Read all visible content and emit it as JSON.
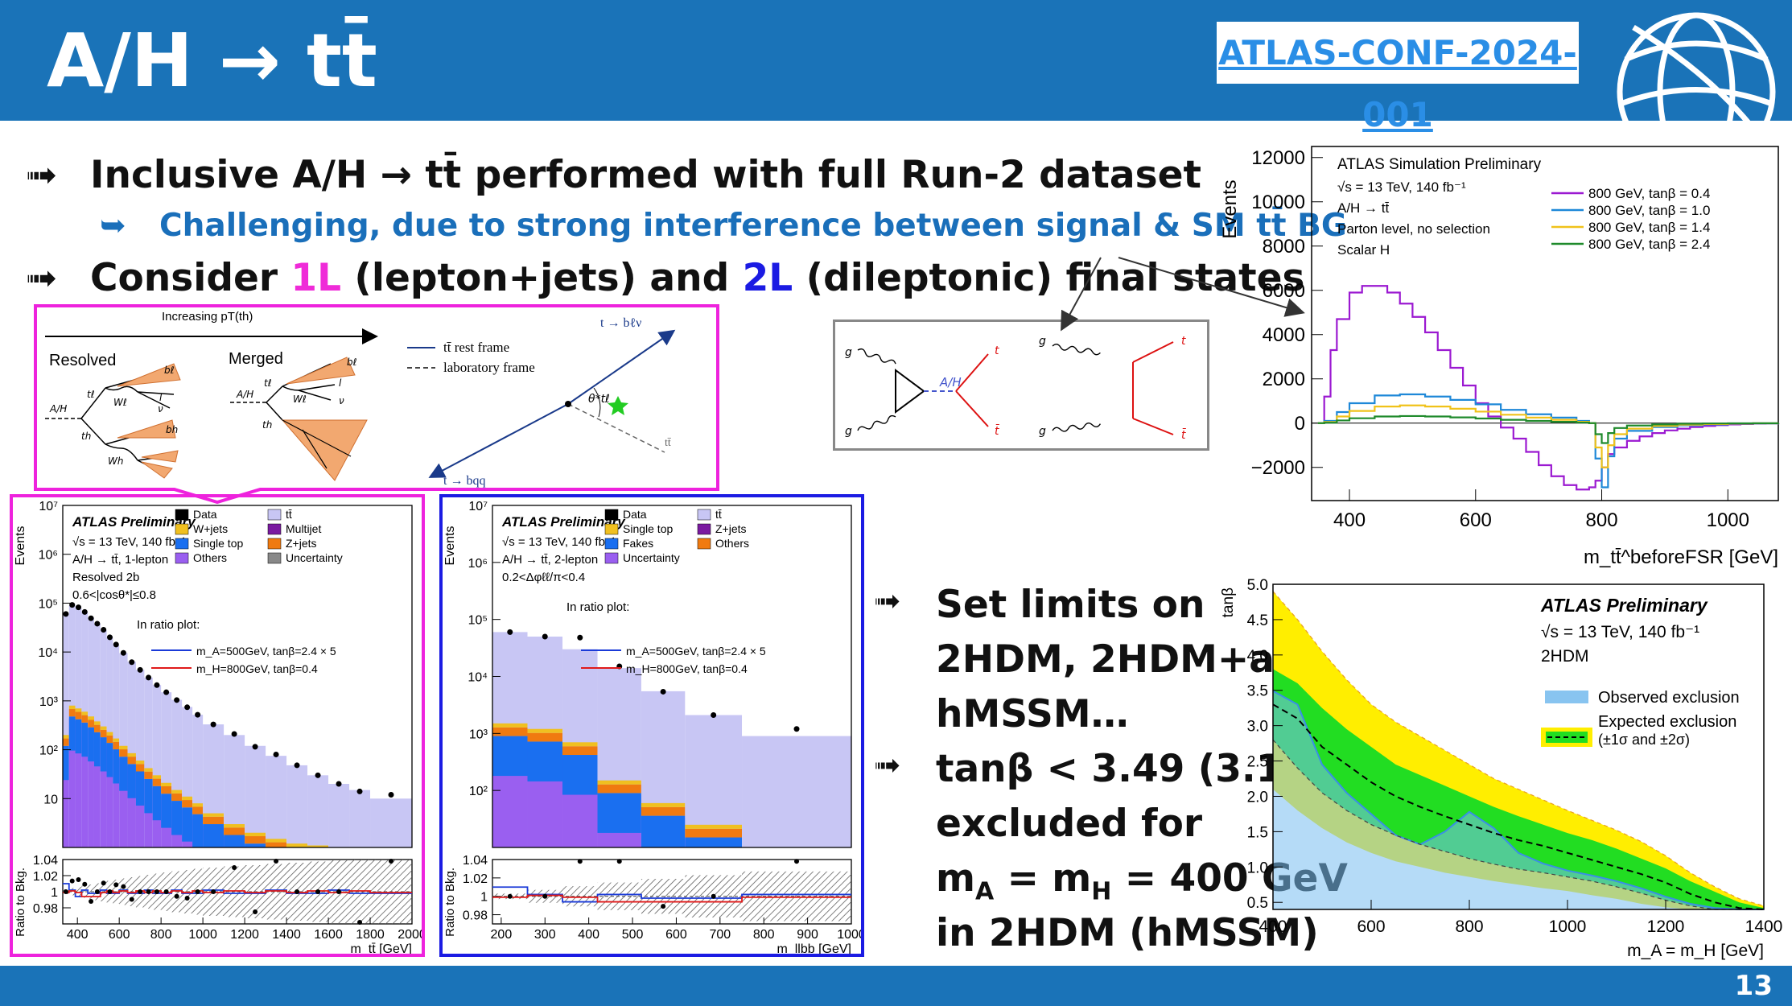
{
  "slide": {
    "title": "A/H → tt̄",
    "reference": "ATLAS-CONF-2024-001",
    "page_number": "13",
    "logo_icon": "globe-icon"
  },
  "bullets": {
    "arrow": "➟",
    "sub_arrow": "➥",
    "b1": "Inclusive A/H → tt̄ performed with full Run-2 dataset",
    "b1_sub": "Challenging, due to strong interference between signal & SM tt̄ BG",
    "b2_pre": "Consider ",
    "b2_1L": "1L",
    "b2_mid": " (lepton+jets) and ",
    "b2_2L": "2L",
    "b2_post": " (dileptonic) final states"
  },
  "limits_text": {
    "l1": "Set limits on",
    "l2": "2HDM, 2HDM+a,",
    "l3": "hMSSM…",
    "l4": "tanβ < 3.49 (3.16)",
    "l5": "excluded for",
    "l6": "m",
    "l6_sub1": "A",
    "l6_mid": " = m",
    "l6_sub2": "H",
    "l6_end": " = 400 GeV",
    "l7": "in 2HDM (hMSSM)"
  },
  "topology": {
    "increasing": "Increasing pT(th)",
    "resolved": "Resolved",
    "merged": "Merged",
    "legend_rest": "tt̄ rest frame",
    "legend_lab": "laboratory frame",
    "t_blnu": "t → bℓν",
    "t_bqq": "t → bqq",
    "ttbar": "tt̄",
    "theta": "θ*tℓ",
    "AH": "A/H",
    "tl": "tℓ",
    "th": "th",
    "Wl": "Wℓ",
    "Wh": "Wh",
    "bl": "bℓ",
    "bh": "bh",
    "l": "l",
    "nu": "ν"
  },
  "feynman": {
    "g": "g",
    "AH": "A/H",
    "t": "t",
    "tbar": "t̄"
  },
  "chart_data": [
    {
      "id": "parton-level",
      "type": "line",
      "title": "ATLAS Simulation Preliminary",
      "lines": [
        "√s = 13 TeV, 140 fb⁻¹",
        "A/H → tt̄",
        "Parton level, no selection",
        "Scalar H"
      ],
      "ylabel": "Events",
      "xlabel": "m_tt̄^beforeFSR [GeV]",
      "xlim": [
        340,
        1080
      ],
      "ylim": [
        -3500,
        12500
      ],
      "xticks": [
        400,
        600,
        800,
        1000
      ],
      "yticks": [
        -2000,
        0,
        2000,
        4000,
        6000,
        8000,
        10000,
        12000
      ],
      "ytick_labels": [
        "−2000",
        "0",
        "2000",
        "4000",
        "6000",
        "8000",
        "10000",
        "12000"
      ],
      "series": [
        {
          "name": "800 GeV, tanβ = 0.4",
          "color": "#9b19d1",
          "x": [
            350,
            360,
            370,
            380,
            400,
            420,
            440,
            460,
            480,
            500,
            520,
            540,
            560,
            580,
            600,
            620,
            640,
            660,
            680,
            700,
            720,
            740,
            760,
            780,
            790,
            800,
            810,
            820,
            840,
            860,
            880,
            900,
            920,
            940,
            960,
            980,
            1000,
            1020,
            1040,
            1060,
            1080
          ],
          "y": [
            0,
            1200,
            3300,
            4700,
            5900,
            6200,
            6200,
            5900,
            5400,
            4800,
            4100,
            3300,
            2500,
            1700,
            900,
            300,
            -200,
            -700,
            -1300,
            -1900,
            -2400,
            -2800,
            -3000,
            -2900,
            -2600,
            -2000,
            -1400,
            -1100,
            -800,
            -600,
            -450,
            -330,
            -250,
            -180,
            -130,
            -90,
            -60,
            -40,
            -25,
            -15,
            0
          ]
        },
        {
          "name": "800 GeV, tanβ = 1.0",
          "color": "#1e88d8",
          "x": [
            350,
            360,
            380,
            400,
            440,
            480,
            520,
            560,
            600,
            640,
            680,
            720,
            760,
            780,
            790,
            800,
            810,
            820,
            840,
            880,
            920,
            960,
            1000,
            1040,
            1080
          ],
          "y": [
            0,
            100,
            500,
            900,
            1250,
            1300,
            1200,
            1050,
            850,
            600,
            400,
            250,
            100,
            0,
            -1600,
            -2900,
            -1500,
            -700,
            -350,
            -180,
            -100,
            -60,
            -30,
            -15,
            0
          ]
        },
        {
          "name": "800 GeV, tanβ = 1.4",
          "color": "#f0c21a",
          "x": [
            350,
            360,
            380,
            400,
            440,
            480,
            520,
            560,
            600,
            640,
            680,
            720,
            760,
            780,
            790,
            800,
            810,
            820,
            840,
            880,
            920,
            960,
            1000,
            1040,
            1080
          ],
          "y": [
            0,
            50,
            300,
            550,
            750,
            800,
            750,
            650,
            520,
            380,
            250,
            150,
            60,
            0,
            -1100,
            -2000,
            -1000,
            -500,
            -250,
            -130,
            -70,
            -40,
            -20,
            -10,
            0
          ]
        },
        {
          "name": "800 GeV, tanβ = 2.4",
          "color": "#1f8a2b",
          "x": [
            350,
            360,
            380,
            400,
            440,
            480,
            520,
            560,
            600,
            640,
            680,
            720,
            760,
            780,
            790,
            800,
            810,
            820,
            840,
            880,
            920,
            960,
            1000,
            1040,
            1080
          ],
          "y": [
            0,
            20,
            120,
            220,
            300,
            320,
            300,
            260,
            210,
            150,
            100,
            60,
            25,
            0,
            -500,
            -900,
            -450,
            -220,
            -110,
            -60,
            -30,
            -15,
            -8,
            -4,
            0
          ]
        }
      ]
    },
    {
      "id": "1L-distribution",
      "type": "bar",
      "title": "ATLAS Preliminary",
      "lines": [
        "√s = 13 TeV, 140 fb⁻¹",
        "A/H → tt̄, 1-lepton",
        "Resolved 2b",
        "0.6<|cosθ*|≤0.8",
        "In ratio plot:"
      ],
      "legend": [
        "Data",
        "tt̄",
        "W+jets",
        "Multijet",
        "Single top",
        "Z+jets",
        "Others",
        "Uncertainty"
      ],
      "signals": [
        "m_A=500GeV, tanβ=2.4 × 5",
        "m_H=800GeV, tanβ=0.4"
      ],
      "ylabel": "Events",
      "ratio_ylabel": "Ratio to Bkg.",
      "xlabel": "m_tt̄ [GeV]",
      "xlim": [
        330,
        2000
      ],
      "xticks": [
        400,
        600,
        800,
        1000,
        1200,
        1400,
        1600,
        1800,
        2000
      ],
      "ylog": [
        1,
        10000000
      ],
      "yticks": [
        "10",
        "10²",
        "10³",
        "10⁴",
        "10⁵",
        "10⁶",
        "10⁷"
      ],
      "ratio_ylim": [
        0.96,
        1.04
      ],
      "ratio_yticks": [
        "0.98",
        "1",
        "1.02",
        "1.04"
      ],
      "bin_edges": [
        330,
        360,
        390,
        420,
        450,
        480,
        510,
        540,
        570,
        600,
        640,
        680,
        720,
        760,
        800,
        850,
        900,
        950,
        1000,
        1100,
        1200,
        1300,
        1400,
        1500,
        1600,
        1700,
        1800,
        2000
      ],
      "ttbar": [
        60000,
        90000,
        80000,
        65000,
        50000,
        38000,
        28000,
        20000,
        14000,
        9500,
        6300,
        4300,
        3000,
        2100,
        1500,
        1050,
        750,
        520,
        330,
        200,
        120,
        75,
        48,
        30,
        20,
        15,
        10
      ],
      "others_stack": [
        200,
        800,
        700,
        600,
        480,
        380,
        300,
        230,
        170,
        120,
        85,
        60,
        42,
        30,
        21,
        15,
        11,
        8,
        5,
        3,
        2,
        1.5,
        1.2,
        1.1,
        1,
        1,
        1
      ],
      "data": [
        60000,
        92000,
        82000,
        66000,
        49000,
        38000,
        28500,
        20000,
        14200,
        9600,
        6200,
        4300,
        3000,
        2100,
        1500,
        1040,
        740,
        520,
        330,
        210,
        115,
        80,
        48,
        30,
        20,
        14,
        12
      ]
    },
    {
      "id": "2L-distribution",
      "type": "bar",
      "title": "ATLAS Preliminary",
      "lines": [
        "√s = 13 TeV, 140 fb⁻¹",
        "A/H → tt̄, 2-lepton",
        "0.2<Δφℓℓ/π<0.4",
        "In ratio plot:"
      ],
      "legend": [
        "Data",
        "tt̄",
        "Single top",
        "Z+jets",
        "Fakes",
        "Others",
        "Uncertainty"
      ],
      "signals": [
        "m_A=500GeV, tanβ=2.4 × 5",
        "m_H=800GeV, tanβ=0.4"
      ],
      "ylabel": "Events",
      "ratio_ylabel": "Ratio to Bkg.",
      "xlabel": "m_llbb [GeV]",
      "xlim": [
        180,
        1000
      ],
      "xticks": [
        200,
        300,
        400,
        500,
        600,
        700,
        800,
        900,
        1000
      ],
      "ylog": [
        10,
        10000000
      ],
      "yticks": [
        "10²",
        "10³",
        "10⁴",
        "10⁵",
        "10⁶",
        "10⁷"
      ],
      "ratio_ylim": [
        0.97,
        1.04
      ],
      "ratio_yticks": [
        "0.98",
        "1",
        "1.02",
        "1.04"
      ],
      "bin_edges": [
        180,
        260,
        340,
        420,
        520,
        620,
        750,
        1000
      ],
      "ttbar": [
        60000,
        50000,
        30000,
        14000,
        5500,
        2100,
        900
      ],
      "others_stack": [
        1500,
        1200,
        700,
        150,
        60,
        25,
        10
      ],
      "data": [
        60000,
        50000,
        48000,
        15000,
        5400,
        2100,
        1200
      ]
    },
    {
      "id": "2HDM-limit",
      "type": "area",
      "title": "ATLAS Preliminary",
      "lines": [
        "√s = 13 TeV, 140 fb⁻¹",
        "2HDM"
      ],
      "legend": [
        "Observed exclusion",
        "Expected exclusion",
        "(±1σ and ±2σ)"
      ],
      "ylabel": "tanβ",
      "xlabel": "m_A = m_H [GeV]",
      "xlim": [
        400,
        1400
      ],
      "ylim": [
        0.4,
        5.0
      ],
      "xticks": [
        400,
        600,
        800,
        1000,
        1200,
        1400
      ],
      "yticks": [
        "0.5",
        "1.0",
        "1.5",
        "2.0",
        "2.5",
        "3.0",
        "3.5",
        "4.0",
        "4.5",
        "5.0"
      ],
      "x": [
        400,
        450,
        500,
        550,
        600,
        650,
        700,
        750,
        800,
        850,
        900,
        950,
        1000,
        1050,
        1100,
        1150,
        1200,
        1250,
        1300,
        1350,
        1400
      ],
      "expected": [
        3.3,
        3.1,
        2.7,
        2.45,
        2.2,
        2.0,
        1.85,
        1.72,
        1.6,
        1.48,
        1.38,
        1.3,
        1.2,
        1.1,
        1.0,
        0.9,
        0.78,
        0.62,
        0.5,
        0.42,
        0.4
      ],
      "minus1": [
        2.8,
        2.4,
        2.05,
        1.8,
        1.6,
        1.45,
        1.32,
        1.22,
        1.12,
        1.04,
        0.97,
        0.92,
        0.86,
        0.8,
        0.72,
        0.63,
        0.53,
        0.45,
        0.4,
        0.4,
        0.4
      ],
      "plus1": [
        3.8,
        3.6,
        3.25,
        2.95,
        2.7,
        2.45,
        2.3,
        2.15,
        2.0,
        1.85,
        1.72,
        1.6,
        1.48,
        1.38,
        1.26,
        1.12,
        0.98,
        0.8,
        0.65,
        0.5,
        0.42
      ],
      "minus2": [
        2.1,
        1.8,
        1.55,
        1.35,
        1.2,
        1.08,
        1.0,
        0.92,
        0.86,
        0.8,
        0.75,
        0.7,
        0.66,
        0.6,
        0.55,
        0.48,
        0.43,
        0.4,
        0.4,
        0.4,
        0.4
      ],
      "plus2": [
        4.9,
        4.5,
        4.05,
        3.65,
        3.3,
        3.05,
        2.85,
        2.65,
        2.45,
        2.25,
        2.1,
        1.95,
        1.8,
        1.66,
        1.52,
        1.36,
        1.16,
        0.92,
        0.72,
        0.55,
        0.45
      ],
      "observed": [
        3.49,
        3.3,
        2.45,
        2.05,
        1.75,
        1.45,
        1.32,
        1.5,
        1.78,
        1.55,
        1.2,
        1.05,
        0.95,
        0.88,
        0.8,
        0.7,
        0.58,
        0.48,
        0.42,
        0.4,
        0.4
      ]
    }
  ]
}
